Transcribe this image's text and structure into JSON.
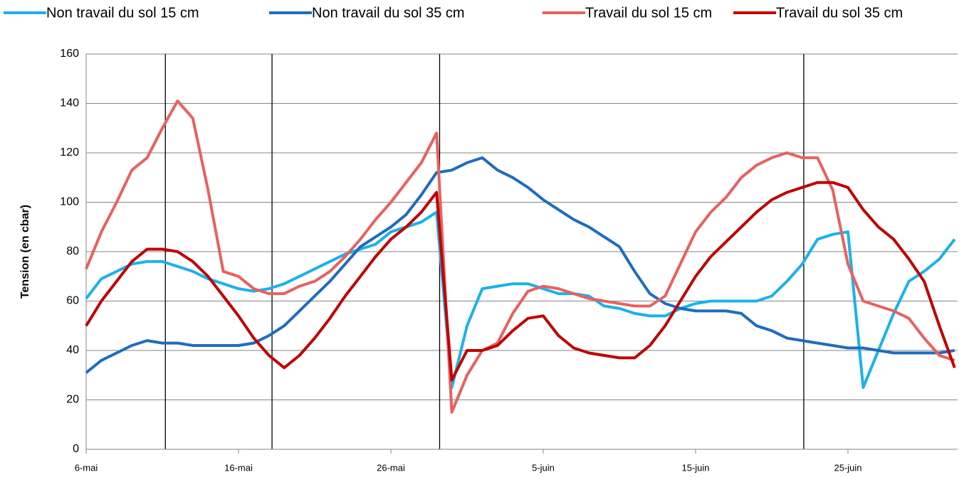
{
  "chart_data": {
    "type": "line",
    "y_label": "Tension (en cbar)",
    "categories": [
      "6-mai",
      null,
      null,
      null,
      null,
      null,
      null,
      null,
      null,
      null,
      "16-mai",
      null,
      null,
      null,
      null,
      null,
      null,
      null,
      null,
      null,
      "26-mai",
      null,
      null,
      null,
      null,
      null,
      null,
      null,
      null,
      null,
      "5-juin",
      null,
      null,
      null,
      null,
      null,
      null,
      null,
      null,
      null,
      "15-juin",
      null,
      null,
      null,
      null,
      null,
      null,
      null,
      null,
      null,
      "25-juin",
      null,
      null,
      null,
      null,
      null,
      null,
      null
    ],
    "series": [
      {
        "name": "Non travail du sol 15 cm",
        "color": "#1ab2ea",
        "values": [
          61,
          69,
          72,
          75,
          76,
          76,
          74,
          72,
          69,
          67,
          65,
          64,
          65,
          67,
          70,
          73,
          76,
          79,
          81,
          83,
          88,
          90,
          92,
          96,
          25,
          50,
          65,
          66,
          67,
          67,
          65,
          63,
          63,
          62,
          58,
          57,
          55,
          54,
          54,
          57,
          59,
          60,
          60,
          60,
          60,
          62,
          68,
          75,
          85,
          87,
          88,
          25,
          40,
          55,
          68,
          72,
          77,
          85
        ]
      },
      {
        "name": "Non travail du sol 35 cm",
        "color": "#1f6cbd",
        "values": [
          31,
          36,
          39,
          42,
          44,
          43,
          43,
          42,
          42,
          42,
          42,
          43,
          46,
          50,
          56,
          62,
          68,
          75,
          82,
          86,
          90,
          95,
          103,
          112,
          113,
          116,
          118,
          113,
          110,
          106,
          101,
          97,
          93,
          90,
          86,
          82,
          72,
          63,
          59,
          57,
          56,
          56,
          56,
          55,
          50,
          48,
          45,
          44,
          43,
          42,
          41,
          41,
          40,
          39,
          39,
          39,
          39,
          40
        ]
      },
      {
        "name": "Travail du sol 15 cm",
        "color": "#e8615f",
        "values": [
          73,
          88,
          100,
          113,
          118,
          130,
          141,
          134,
          105,
          72,
          70,
          65,
          63,
          63,
          66,
          68,
          72,
          78,
          85,
          93,
          100,
          108,
          116,
          128,
          15,
          30,
          40,
          43,
          55,
          64,
          66,
          65,
          63,
          61,
          60,
          59,
          58,
          58,
          62,
          75,
          88,
          96,
          102,
          110,
          115,
          118,
          120,
          118,
          118,
          105,
          75,
          60,
          58,
          56,
          53,
          45,
          38,
          36
        ]
      },
      {
        "name": "Travail du sol 35 cm",
        "color": "#c00000",
        "values": [
          50,
          60,
          68,
          76,
          81,
          81,
          80,
          76,
          70,
          62,
          54,
          45,
          38,
          33,
          38,
          45,
          53,
          62,
          70,
          78,
          85,
          90,
          96,
          104,
          28,
          40,
          40,
          42,
          48,
          53,
          54,
          46,
          41,
          39,
          38,
          37,
          37,
          42,
          50,
          60,
          70,
          78,
          84,
          90,
          96,
          101,
          104,
          106,
          108,
          108,
          106,
          97,
          90,
          85,
          77,
          68,
          50,
          33
        ]
      }
    ],
    "event_lines": [
      5.2,
      12.2,
      23.2,
      47.1
    ],
    "ylim": [
      0,
      160
    ],
    "yticks": [
      0,
      20,
      40,
      60,
      80,
      100,
      120,
      140,
      160
    ],
    "grid": true,
    "legend": "top"
  }
}
